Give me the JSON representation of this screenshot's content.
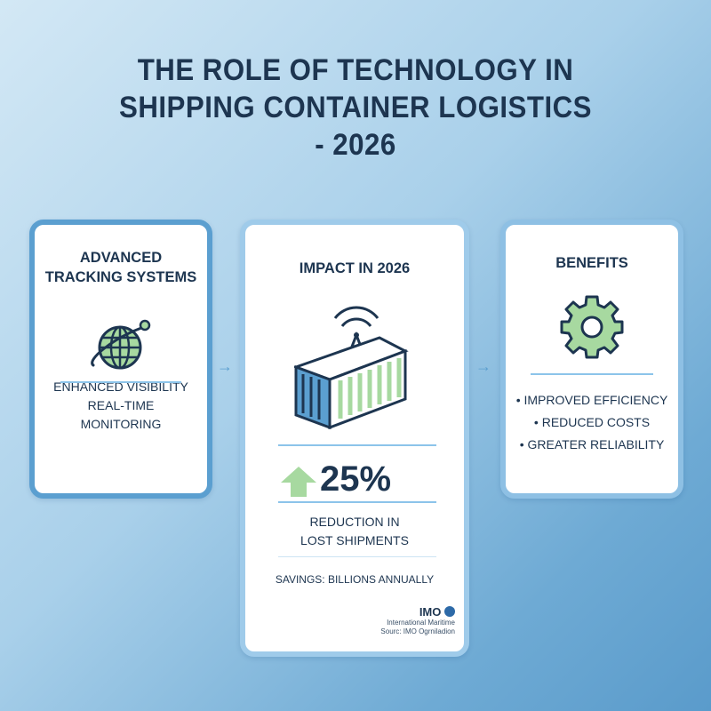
{
  "title": [
    "THE ROLE OF TECHNOLOGY IN",
    "SHIPPING CONTAINER LOGISTICS",
    "- 2026"
  ],
  "colors": {
    "navy": "#1d3550",
    "blue": "#5b9fd0",
    "green": "#a7d9a0"
  },
  "cards": {
    "tracking": {
      "title": [
        "ADVANCED",
        "TRACKING SYSTEMS"
      ],
      "icon": "globe-orbit-icon",
      "lines": [
        "ENHANCED VISIBILITY",
        "REAL-TIME",
        "MONITORING"
      ]
    },
    "impact": {
      "title": "IMPACT IN 2026",
      "icon": "smart-container-icon",
      "stat_icon": "arrow-up-icon",
      "stat": "25%",
      "stat_label": [
        "REDUCTION IN",
        "LOST SHIPMENTS"
      ],
      "savings": "SAVINGS: BILLIONS ANNUALLY",
      "logo_text": "IMO",
      "org_line": "International Maritime",
      "source_line": "Sourc: IMO Ogrniladion"
    },
    "benefits": {
      "title": "BENEFITS",
      "icon": "gear-icon",
      "items": [
        "• IMPROVED EFFICIENCY",
        "• REDUCED COSTS",
        "• GREATER RELIABILITY"
      ]
    }
  },
  "connector_icon": "arrow-right-icon"
}
